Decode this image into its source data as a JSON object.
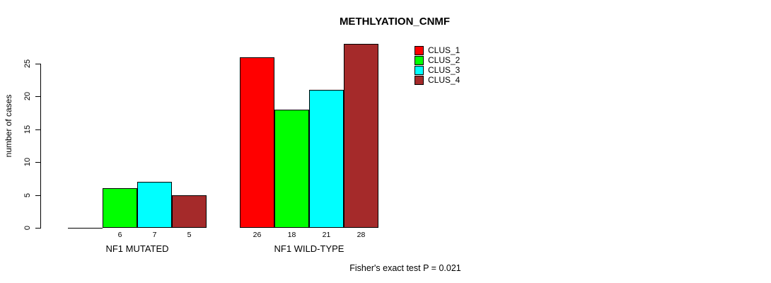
{
  "chart_data": {
    "type": "bar",
    "title": "METHLYATION_CNMF",
    "ylabel": "number of cases",
    "xlabel": "",
    "ylim": [
      0,
      25
    ],
    "yticks": [
      0,
      5,
      10,
      15,
      20,
      25
    ],
    "categories": [
      "NF1 MUTATED",
      "NF1 WILD-TYPE"
    ],
    "series": [
      {
        "name": "CLUS_1",
        "color": "#FF0000",
        "values": [
          0,
          26
        ]
      },
      {
        "name": "CLUS_2",
        "color": "#00FF00",
        "values": [
          6,
          18
        ]
      },
      {
        "name": "CLUS_3",
        "color": "#00FFFF",
        "values": [
          7,
          21
        ]
      },
      {
        "name": "CLUS_4",
        "color": "#A52A2A",
        "values": [
          5,
          28
        ]
      }
    ],
    "bar_value_labels": {
      "show": true,
      "hide_zero": true
    },
    "legend_position": "top-right",
    "grid": false,
    "annotation": "Fisher's exact test P = 0.021"
  },
  "colors": {
    "background": "#FFFFFF",
    "axis": "#000000",
    "text": "#000000"
  }
}
